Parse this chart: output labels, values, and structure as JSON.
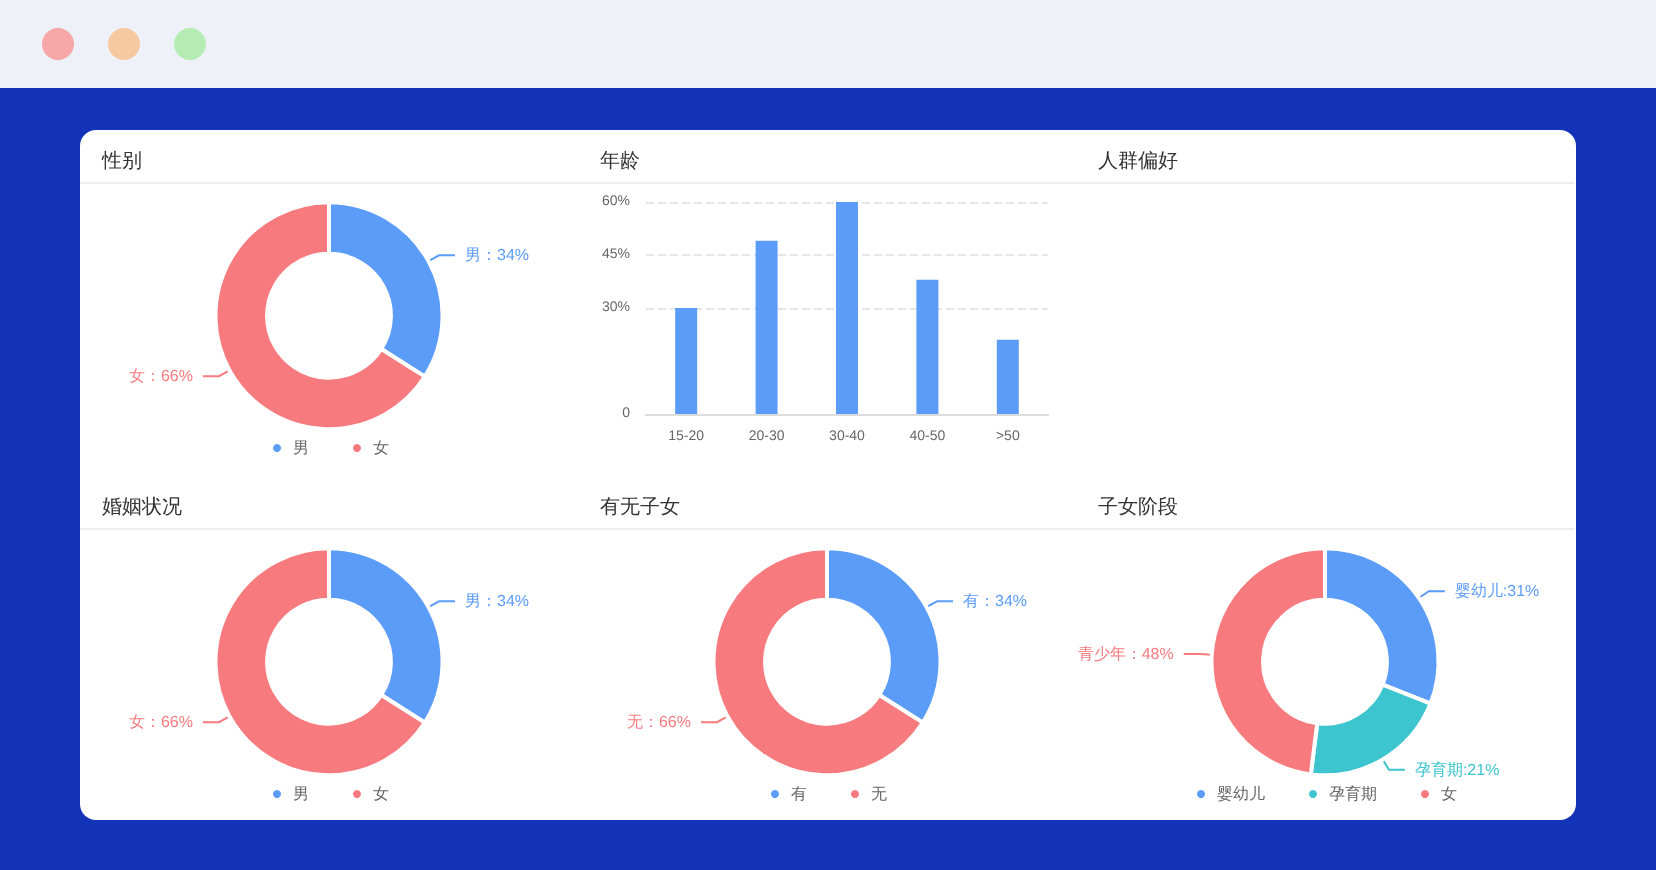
{
  "chart_data": [
    {
      "type": "donut",
      "title": "性别",
      "categories": [
        "男",
        "女"
      ],
      "values": [
        34,
        66
      ],
      "colors": [
        "#5b9cf8",
        "#f77b7e"
      ],
      "value_labels": [
        "男：34%",
        "女：66%"
      ],
      "legend": "bottom"
    },
    {
      "type": "bar",
      "title": "年龄",
      "categories": [
        "15-20",
        "20-30",
        "30-40",
        "40-50",
        ">50"
      ],
      "values": [
        30,
        49,
        60,
        38,
        21
      ],
      "color": "#5b9cf8",
      "ylim": [
        0,
        60
      ],
      "yticks": [
        0,
        {
          "value": 30,
          "label": "30%"
        },
        {
          "value": 45,
          "label": "45%"
        },
        {
          "value": 60,
          "label": "60%"
        }
      ],
      "grid": "y"
    },
    {
      "type": "other",
      "title": "人群偏好"
    },
    {
      "type": "donut",
      "title": "婚姻状况",
      "categories": [
        "男",
        "女"
      ],
      "values": [
        34,
        66
      ],
      "colors": [
        "#5b9cf8",
        "#f77b7e"
      ],
      "value_labels": [
        "男：34%",
        "女：66%"
      ],
      "legend": "bottom"
    },
    {
      "type": "donut",
      "title": "有无子女",
      "categories": [
        "有",
        "无"
      ],
      "values": [
        34,
        66
      ],
      "colors": [
        "#5b9cf8",
        "#f77b7e"
      ],
      "value_labels": [
        "有：34%",
        "无：66%"
      ],
      "legend": "bottom"
    },
    {
      "type": "donut",
      "title": "子女阶段",
      "categories": [
        "婴幼儿",
        "孕育期",
        "女"
      ],
      "values": [
        31,
        21,
        48
      ],
      "colors": [
        "#5b9cf8",
        "#3cc5cf",
        "#f77b7e"
      ],
      "value_labels": [
        "婴幼儿:31%",
        "孕育期:21%",
        "青少年：48%"
      ],
      "legend": "bottom"
    }
  ]
}
